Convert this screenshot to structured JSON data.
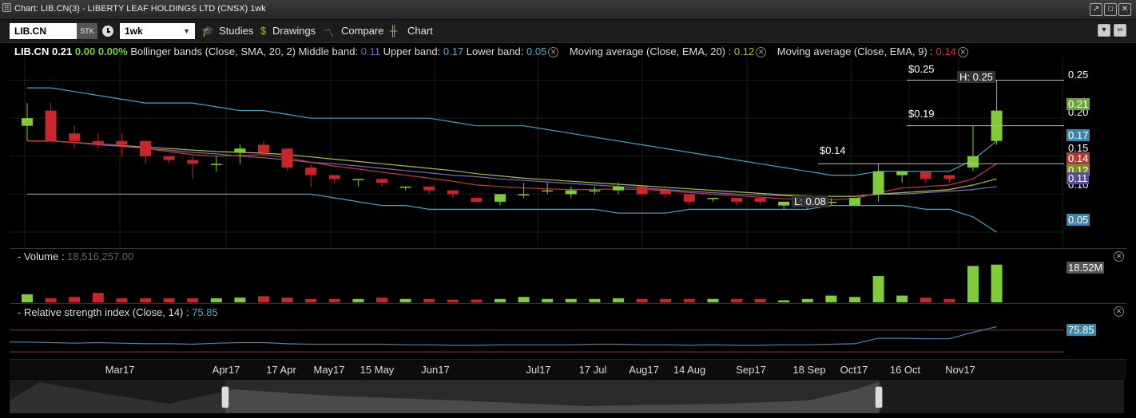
{
  "window": {
    "title": "Chart: LIB.CN(3) - LIBERTY LEAF HOLDINGS LTD (CNSX) 1wk",
    "icon": "chart-window-icon"
  },
  "toolbar": {
    "symbol": "LIB.CN",
    "type_badge": "STK",
    "interval": "1wk",
    "studies_label": "Studies",
    "drawings_label": "Drawings",
    "compare_label": "Compare",
    "chart_label": "Chart"
  },
  "legend": {
    "symbol": "LIB.CN",
    "last": "0.21",
    "change": "0.00",
    "change_pct": "0.00%",
    "bb_label": "Bollinger bands (Close, SMA, 20, 2)",
    "middle_label": "Middle band:",
    "middle_value": "0.11",
    "upper_label": "Upper band:",
    "upper_value": "0.17",
    "lower_label": "Lower band:",
    "lower_value": "0.05",
    "ema20_label": "Moving average (Close, EMA, 20) :",
    "ema20_value": "0.12",
    "ema9_label": "Moving average (Close, EMA, 9) :",
    "ema9_value": "0.14"
  },
  "price_axis": {
    "ticks": [
      "0.25",
      "0.20",
      "0.15",
      "0.10"
    ]
  },
  "price_tags": {
    "last": "0.21",
    "upper": "0.17",
    "ema9": "0.14",
    "ema20": "0.12",
    "middle": "0.11",
    "lower": "0.05"
  },
  "annotations": {
    "high": "H: 0.25",
    "low": "L: 0.08",
    "line1": "$0.25",
    "line2": "$0.19",
    "line3": "$0.14"
  },
  "volume": {
    "label": "Volume",
    "value": "18,516,257.00",
    "tag": "18.52M"
  },
  "rsi": {
    "label": "Relative strength index (Close, 14) :",
    "value": "75.85",
    "tag": "75.85"
  },
  "x_axis": [
    "Mar17",
    "Apr17",
    "17 Apr",
    "May17",
    "15 May",
    "Jun17",
    "Jul17",
    "17 Jul",
    "Aug17",
    "14 Aug",
    "Sep17",
    "18 Sep",
    "Oct17",
    "16 Oct",
    "Nov17"
  ],
  "colors": {
    "up": "#7fcb3a",
    "down": "#c8262a",
    "upper_band": "#4a9fc3",
    "ema20": "#a8c040",
    "ema9": "#c8383a",
    "middle": "#7a6bb5"
  },
  "chart_data": {
    "type": "candlestick",
    "ylim": [
      0.03,
      0.28
    ],
    "candles": [
      {
        "o": 0.19,
        "h": 0.22,
        "l": 0.17,
        "c": 0.2
      },
      {
        "o": 0.21,
        "h": 0.22,
        "l": 0.17,
        "c": 0.17
      },
      {
        "o": 0.18,
        "h": 0.19,
        "l": 0.16,
        "c": 0.17
      },
      {
        "o": 0.17,
        "h": 0.18,
        "l": 0.16,
        "c": 0.165
      },
      {
        "o": 0.17,
        "h": 0.18,
        "l": 0.15,
        "c": 0.165
      },
      {
        "o": 0.17,
        "h": 0.17,
        "l": 0.14,
        "c": 0.15
      },
      {
        "o": 0.15,
        "h": 0.15,
        "l": 0.14,
        "c": 0.145
      },
      {
        "o": 0.145,
        "h": 0.15,
        "l": 0.12,
        "c": 0.14
      },
      {
        "o": 0.14,
        "h": 0.15,
        "l": 0.13,
        "c": 0.14
      },
      {
        "o": 0.155,
        "h": 0.165,
        "l": 0.14,
        "c": 0.16
      },
      {
        "o": 0.165,
        "h": 0.17,
        "l": 0.15,
        "c": 0.155
      },
      {
        "o": 0.16,
        "h": 0.16,
        "l": 0.13,
        "c": 0.135
      },
      {
        "o": 0.135,
        "h": 0.14,
        "l": 0.11,
        "c": 0.125
      },
      {
        "o": 0.125,
        "h": 0.125,
        "l": 0.115,
        "c": 0.12
      },
      {
        "o": 0.12,
        "h": 0.12,
        "l": 0.11,
        "c": 0.12
      },
      {
        "o": 0.12,
        "h": 0.12,
        "l": 0.11,
        "c": 0.115
      },
      {
        "o": 0.11,
        "h": 0.11,
        "l": 0.105,
        "c": 0.11
      },
      {
        "o": 0.11,
        "h": 0.11,
        "l": 0.1,
        "c": 0.105
      },
      {
        "o": 0.105,
        "h": 0.105,
        "l": 0.095,
        "c": 0.1
      },
      {
        "o": 0.095,
        "h": 0.095,
        "l": 0.09,
        "c": 0.09
      },
      {
        "o": 0.09,
        "h": 0.1,
        "l": 0.085,
        "c": 0.1
      },
      {
        "o": 0.1,
        "h": 0.115,
        "l": 0.095,
        "c": 0.1
      },
      {
        "o": 0.105,
        "h": 0.115,
        "l": 0.1,
        "c": 0.105
      },
      {
        "o": 0.1,
        "h": 0.11,
        "l": 0.095,
        "c": 0.105
      },
      {
        "o": 0.105,
        "h": 0.11,
        "l": 0.1,
        "c": 0.105
      },
      {
        "o": 0.105,
        "h": 0.115,
        "l": 0.1,
        "c": 0.11
      },
      {
        "o": 0.11,
        "h": 0.11,
        "l": 0.1,
        "c": 0.1
      },
      {
        "o": 0.105,
        "h": 0.11,
        "l": 0.095,
        "c": 0.1
      },
      {
        "o": 0.1,
        "h": 0.1,
        "l": 0.085,
        "c": 0.09
      },
      {
        "o": 0.095,
        "h": 0.095,
        "l": 0.09,
        "c": 0.095
      },
      {
        "o": 0.095,
        "h": 0.095,
        "l": 0.085,
        "c": 0.09
      },
      {
        "o": 0.095,
        "h": 0.095,
        "l": 0.085,
        "c": 0.09
      },
      {
        "o": 0.085,
        "h": 0.09,
        "l": 0.08,
        "c": 0.09
      },
      {
        "o": 0.09,
        "h": 0.09,
        "l": 0.08,
        "c": 0.09
      },
      {
        "o": 0.09,
        "h": 0.095,
        "l": 0.085,
        "c": 0.09
      },
      {
        "o": 0.085,
        "h": 0.095,
        "l": 0.085,
        "c": 0.095
      },
      {
        "o": 0.1,
        "h": 0.14,
        "l": 0.09,
        "c": 0.13
      },
      {
        "o": 0.125,
        "h": 0.13,
        "l": 0.115,
        "c": 0.13
      },
      {
        "o": 0.13,
        "h": 0.13,
        "l": 0.115,
        "c": 0.12
      },
      {
        "o": 0.125,
        "h": 0.125,
        "l": 0.115,
        "c": 0.12
      },
      {
        "o": 0.135,
        "h": 0.19,
        "l": 0.13,
        "c": 0.15
      },
      {
        "o": 0.17,
        "h": 0.25,
        "l": 0.165,
        "c": 0.21
      }
    ],
    "upper_band": [
      0.24,
      0.24,
      0.235,
      0.23,
      0.225,
      0.22,
      0.22,
      0.22,
      0.215,
      0.21,
      0.21,
      0.205,
      0.2,
      0.2,
      0.2,
      0.2,
      0.2,
      0.2,
      0.195,
      0.19,
      0.19,
      0.19,
      0.185,
      0.18,
      0.175,
      0.17,
      0.165,
      0.16,
      0.155,
      0.15,
      0.145,
      0.14,
      0.135,
      0.13,
      0.125,
      0.125,
      0.13,
      0.13,
      0.13,
      0.13,
      0.145,
      0.17
    ],
    "lower_band": [
      0.1,
      0.1,
      0.1,
      0.1,
      0.1,
      0.1,
      0.1,
      0.1,
      0.1,
      0.1,
      0.1,
      0.1,
      0.1,
      0.095,
      0.09,
      0.085,
      0.085,
      0.08,
      0.08,
      0.08,
      0.08,
      0.08,
      0.08,
      0.08,
      0.08,
      0.075,
      0.075,
      0.075,
      0.08,
      0.08,
      0.08,
      0.08,
      0.08,
      0.08,
      0.085,
      0.085,
      0.085,
      0.085,
      0.08,
      0.08,
      0.07,
      0.05
    ],
    "middle_band": [
      0.17,
      0.17,
      0.168,
      0.165,
      0.163,
      0.16,
      0.158,
      0.155,
      0.153,
      0.15,
      0.148,
      0.145,
      0.142,
      0.14,
      0.137,
      0.134,
      0.131,
      0.128,
      0.125,
      0.123,
      0.12,
      0.118,
      0.116,
      0.114,
      0.112,
      0.11,
      0.108,
      0.106,
      0.104,
      0.102,
      0.1,
      0.099,
      0.098,
      0.097,
      0.097,
      0.097,
      0.1,
      0.1,
      0.102,
      0.104,
      0.106,
      0.11
    ],
    "ema20": [
      0.17,
      0.17,
      0.168,
      0.166,
      0.164,
      0.162,
      0.16,
      0.158,
      0.156,
      0.155,
      0.154,
      0.152,
      0.149,
      0.146,
      0.143,
      0.14,
      0.137,
      0.134,
      0.131,
      0.127,
      0.124,
      0.121,
      0.119,
      0.117,
      0.115,
      0.113,
      0.111,
      0.109,
      0.107,
      0.105,
      0.103,
      0.101,
      0.099,
      0.098,
      0.097,
      0.097,
      0.1,
      0.102,
      0.104,
      0.106,
      0.112,
      0.12
    ],
    "ema9": [
      0.17,
      0.17,
      0.168,
      0.166,
      0.164,
      0.16,
      0.156,
      0.152,
      0.15,
      0.151,
      0.152,
      0.148,
      0.142,
      0.137,
      0.133,
      0.129,
      0.125,
      0.121,
      0.117,
      0.112,
      0.11,
      0.108,
      0.107,
      0.106,
      0.106,
      0.107,
      0.106,
      0.105,
      0.102,
      0.1,
      0.098,
      0.096,
      0.094,
      0.093,
      0.093,
      0.094,
      0.102,
      0.108,
      0.11,
      0.112,
      0.12,
      0.14
    ],
    "volume": [
      1.2,
      0.6,
      0.8,
      1.4,
      0.6,
      0.6,
      0.6,
      0.6,
      0.6,
      0.7,
      0.9,
      0.7,
      0.5,
      0.5,
      0.5,
      0.7,
      0.5,
      0.5,
      0.4,
      0.4,
      0.5,
      0.8,
      0.5,
      0.5,
      0.5,
      0.6,
      0.5,
      0.5,
      0.5,
      0.5,
      0.5,
      0.5,
      0.3,
      0.5,
      1.0,
      0.8,
      3.9,
      1.0,
      0.7,
      0.5,
      5.4,
      5.6
    ],
    "rsi": [
      48,
      47,
      46,
      47,
      46,
      45,
      45,
      44,
      46,
      47,
      47,
      45,
      44,
      44,
      44,
      44,
      43,
      43,
      42,
      42,
      43,
      43,
      43,
      43,
      44,
      44,
      43,
      43,
      42,
      43,
      42,
      42,
      43,
      43,
      44,
      45,
      55,
      55,
      54,
      54,
      66,
      76
    ],
    "rsi_range": [
      20,
      90
    ]
  }
}
